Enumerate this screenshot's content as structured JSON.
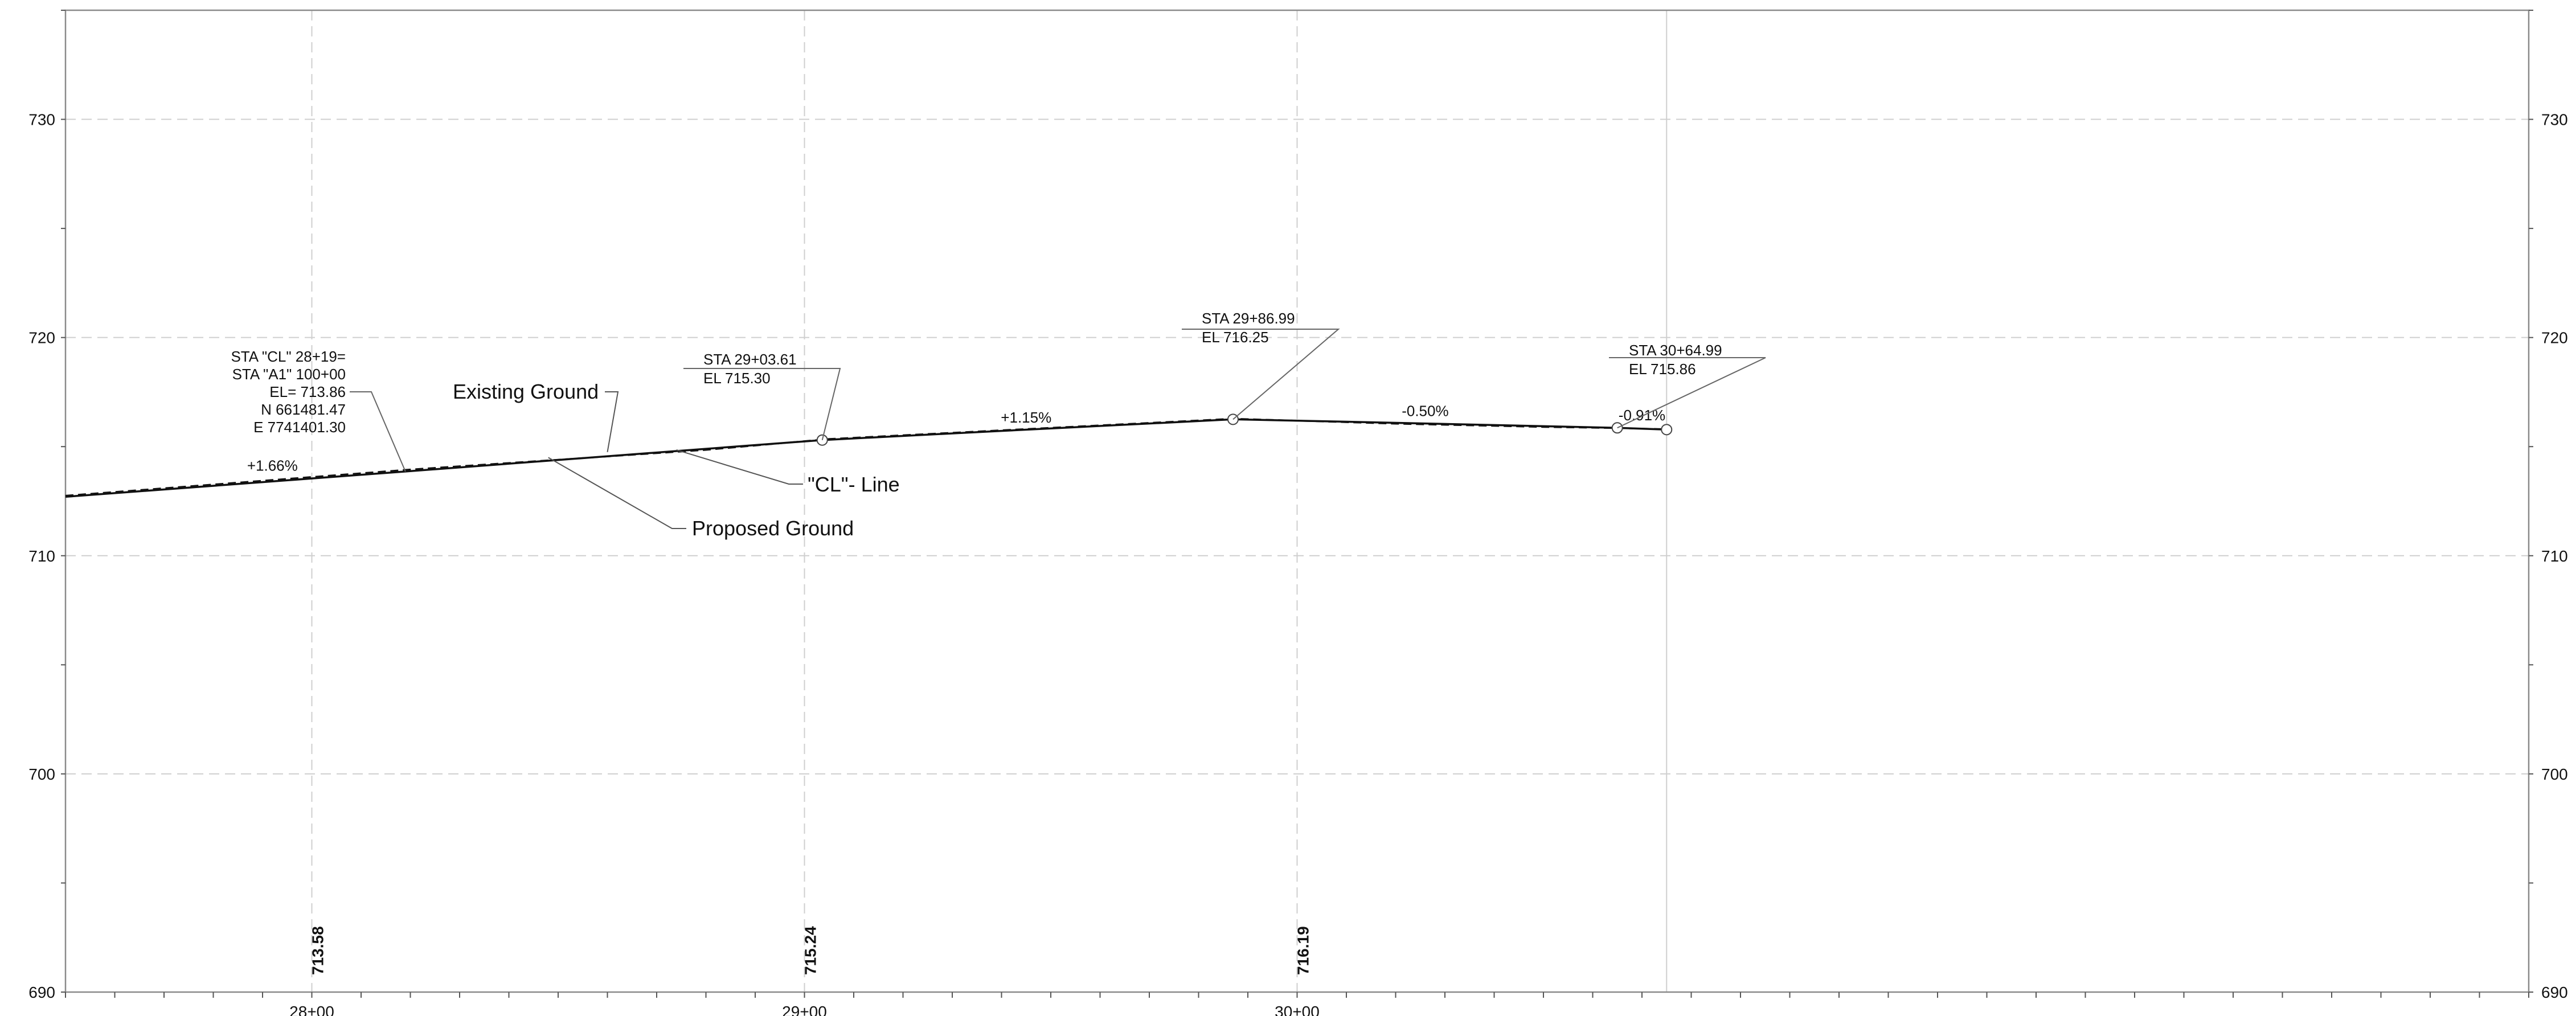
{
  "chart_data": {
    "type": "line",
    "title": "",
    "xlabel": "",
    "ylabel": "",
    "xlim": [
      2750,
      3250
    ],
    "ylim": [
      690,
      735
    ],
    "grid": true,
    "y_ticks": [
      690,
      700,
      710,
      720,
      730
    ],
    "y_tick_labels": [
      "690",
      "700",
      "710",
      "720",
      "730"
    ],
    "station_ticks": [
      {
        "x": 2800,
        "label": "28+00"
      },
      {
        "x": 2900,
        "label": "29+00"
      },
      {
        "x": 3000,
        "label": "30+00"
      }
    ],
    "end_gridline_x": 3075,
    "bottom_elevations": [
      {
        "x": 2800,
        "label": "713.58"
      },
      {
        "x": 2900,
        "label": "715.24"
      },
      {
        "x": 3000,
        "label": "716.19"
      }
    ],
    "series": [
      {
        "name": "Proposed Ground",
        "style": "solid",
        "x": [
          2750,
          2819,
          2903.61,
          2940,
          2986.99,
          3010,
          3064.99,
          3075
        ],
        "y": [
          712.7,
          713.86,
          715.3,
          715.72,
          716.25,
          716.14,
          715.86,
          715.78
        ]
      },
      {
        "name": "Existing Ground",
        "style": "dashed",
        "x": [
          2750,
          2820,
          2850,
          2880,
          2905,
          2940,
          2987,
          3020,
          3050,
          3065,
          3075
        ],
        "y": [
          712.75,
          713.95,
          714.4,
          714.85,
          715.35,
          715.75,
          716.28,
          716.05,
          715.9,
          715.85,
          715.8
        ]
      }
    ],
    "vertices": [
      {
        "x": 2903.61,
        "y": 715.3
      },
      {
        "x": 2986.99,
        "y": 716.25
      },
      {
        "x": 3064.99,
        "y": 715.86
      },
      {
        "x": 3075,
        "y": 715.78
      }
    ],
    "grade_labels": [
      {
        "x": 2792,
        "y": 713.9,
        "text": "+1.66%"
      },
      {
        "x": 2945,
        "y": 716.1,
        "text": "+1.15%"
      },
      {
        "x": 3026,
        "y": 716.4,
        "text": "-0.50%"
      },
      {
        "x": 3070,
        "y": 716.2,
        "text": "-0.91%"
      }
    ],
    "annotations": {
      "begin_station": {
        "lines": [
          "STA \"CL\" 28+19=",
          "STA \"A1\" 100+00",
          "EL= 713.86",
          "N 661481.47",
          "E 7741401.30"
        ],
        "target": {
          "x": 2819,
          "y": 713.86
        }
      },
      "pvi_1": {
        "lines": [
          "STA 29+03.61",
          "EL 715.30"
        ],
        "target": {
          "x": 2903.61,
          "y": 715.3
        }
      },
      "pvi_2": {
        "lines": [
          "STA 29+86.99",
          "EL 716.25"
        ],
        "target": {
          "x": 2986.99,
          "y": 716.25
        }
      },
      "pvi_3": {
        "lines": [
          "STA 30+64.99",
          "EL 715.86"
        ],
        "target": {
          "x": 3064.99,
          "y": 715.86
        }
      },
      "existing_ground": {
        "text": "Existing Ground",
        "target": {
          "x": 2860,
          "y": 714.75
        }
      },
      "cl_line": {
        "text": "\"CL\"- Line",
        "target": {
          "x": 2874,
          "y": 714.85
        }
      },
      "proposed_ground": {
        "text": "Proposed Ground",
        "target": {
          "x": 2848,
          "y": 714.5
        }
      }
    }
  }
}
